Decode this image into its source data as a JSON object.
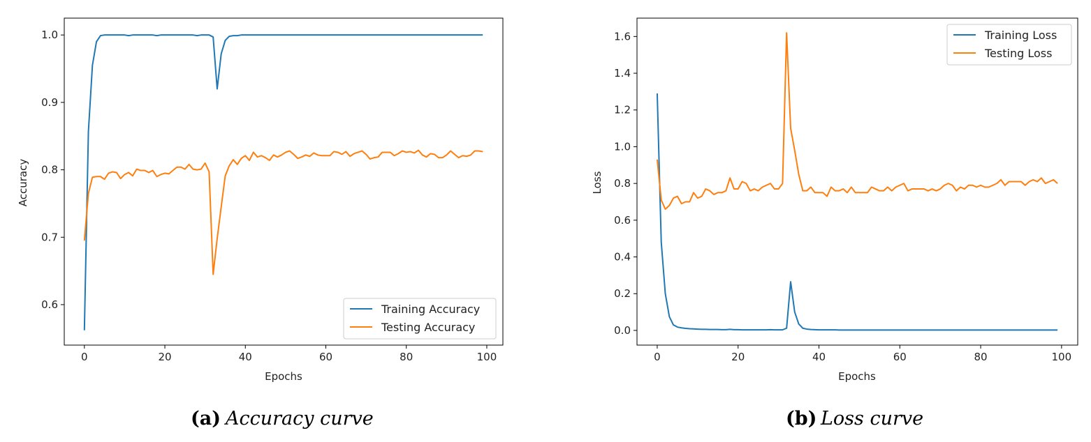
{
  "panels": [
    {
      "caption_label": "(a)",
      "caption_text": "Accuracy curve",
      "chart_data": {
        "type": "line",
        "xlabel": "Epochs",
        "ylabel": "Accuracy",
        "xlim": [
          -5,
          104
        ],
        "ylim": [
          0.54,
          1.025
        ],
        "xticks": [
          0,
          20,
          40,
          60,
          80,
          100
        ],
        "yticks": [
          0.6,
          0.7,
          0.8,
          0.9,
          1.0
        ],
        "ytick_labels": [
          "0.6",
          "0.7",
          "0.8",
          "0.9",
          "1.0"
        ],
        "legend_position": "lower-right",
        "series": [
          {
            "name": "Training Accuracy",
            "color": "#1f77b4",
            "x": [
              0,
              1,
              2,
              3,
              4,
              5,
              6,
              7,
              8,
              9,
              10,
              11,
              12,
              13,
              14,
              15,
              16,
              17,
              18,
              19,
              20,
              21,
              22,
              23,
              24,
              25,
              26,
              27,
              28,
              29,
              30,
              31,
              32,
              33,
              34,
              35,
              36,
              37,
              38,
              39,
              40,
              41,
              42,
              43,
              44,
              45,
              46,
              47,
              48,
              49,
              50,
              51,
              52,
              53,
              54,
              55,
              56,
              57,
              58,
              59,
              60,
              61,
              62,
              63,
              64,
              65,
              66,
              67,
              68,
              69,
              70,
              71,
              72,
              73,
              74,
              75,
              76,
              77,
              78,
              79,
              80,
              81,
              82,
              83,
              84,
              85,
              86,
              87,
              88,
              89,
              90,
              91,
              92,
              93,
              94,
              95,
              96,
              97,
              98,
              99
            ],
            "y": [
              0.562,
              0.857,
              0.955,
              0.99,
              0.999,
              1.0,
              1.0,
              1.0,
              1.0,
              1.0,
              1.0,
              0.999,
              1.0,
              1.0,
              1.0,
              1.0,
              1.0,
              1.0,
              0.999,
              1.0,
              1.0,
              1.0,
              1.0,
              1.0,
              1.0,
              1.0,
              1.0,
              1.0,
              0.999,
              1.0,
              1.0,
              1.0,
              0.997,
              0.92,
              0.972,
              0.992,
              0.998,
              0.999,
              0.999,
              1.0,
              1.0,
              1.0,
              1.0,
              1.0,
              1.0,
              1.0,
              1.0,
              1.0,
              1.0,
              1.0,
              1.0,
              1.0,
              1.0,
              1.0,
              1.0,
              1.0,
              1.0,
              1.0,
              1.0,
              1.0,
              1.0,
              1.0,
              1.0,
              1.0,
              1.0,
              1.0,
              1.0,
              1.0,
              1.0,
              1.0,
              1.0,
              1.0,
              1.0,
              1.0,
              1.0,
              1.0,
              1.0,
              1.0,
              1.0,
              1.0,
              1.0,
              1.0,
              1.0,
              1.0,
              1.0,
              1.0,
              1.0,
              1.0,
              1.0,
              1.0,
              1.0,
              1.0,
              1.0,
              1.0,
              1.0,
              1.0,
              1.0,
              1.0,
              1.0,
              1.0
            ]
          },
          {
            "name": "Testing Accuracy",
            "color": "#ff7f0e",
            "x": [
              0,
              1,
              2,
              3,
              4,
              5,
              6,
              7,
              8,
              9,
              10,
              11,
              12,
              13,
              14,
              15,
              16,
              17,
              18,
              19,
              20,
              21,
              22,
              23,
              24,
              25,
              26,
              27,
              28,
              29,
              30,
              31,
              32,
              33,
              34,
              35,
              36,
              37,
              38,
              39,
              40,
              41,
              42,
              43,
              44,
              45,
              46,
              47,
              48,
              49,
              50,
              51,
              52,
              53,
              54,
              55,
              56,
              57,
              58,
              59,
              60,
              61,
              62,
              63,
              64,
              65,
              66,
              67,
              68,
              69,
              70,
              71,
              72,
              73,
              74,
              75,
              76,
              77,
              78,
              79,
              80,
              81,
              82,
              83,
              84,
              85,
              86,
              87,
              88,
              89,
              90,
              91,
              92,
              93,
              94,
              95,
              96,
              97,
              98,
              99
            ],
            "y": [
              0.695,
              0.765,
              0.789,
              0.79,
              0.79,
              0.786,
              0.795,
              0.797,
              0.796,
              0.787,
              0.793,
              0.796,
              0.791,
              0.801,
              0.799,
              0.799,
              0.796,
              0.799,
              0.79,
              0.793,
              0.795,
              0.794,
              0.799,
              0.804,
              0.804,
              0.801,
              0.808,
              0.801,
              0.8,
              0.801,
              0.81,
              0.797,
              0.645,
              0.698,
              0.745,
              0.791,
              0.806,
              0.815,
              0.808,
              0.817,
              0.821,
              0.814,
              0.826,
              0.819,
              0.821,
              0.818,
              0.814,
              0.822,
              0.819,
              0.822,
              0.826,
              0.828,
              0.823,
              0.817,
              0.819,
              0.822,
              0.82,
              0.825,
              0.822,
              0.821,
              0.821,
              0.821,
              0.827,
              0.826,
              0.823,
              0.827,
              0.82,
              0.824,
              0.826,
              0.828,
              0.823,
              0.816,
              0.818,
              0.819,
              0.826,
              0.826,
              0.826,
              0.821,
              0.824,
              0.828,
              0.826,
              0.827,
              0.825,
              0.829,
              0.822,
              0.819,
              0.824,
              0.823,
              0.818,
              0.818,
              0.822,
              0.828,
              0.823,
              0.818,
              0.821,
              0.82,
              0.822,
              0.828,
              0.828,
              0.827
            ]
          }
        ]
      }
    },
    {
      "caption_label": "(b)",
      "caption_text": "Loss curve",
      "chart_data": {
        "type": "line",
        "xlabel": "Epochs",
        "ylabel": "Loss",
        "xlim": [
          -5,
          104
        ],
        "ylim": [
          -0.08,
          1.7
        ],
        "xticks": [
          0,
          20,
          40,
          60,
          80,
          100
        ],
        "yticks": [
          0.0,
          0.2,
          0.4,
          0.6,
          0.8,
          1.0,
          1.2,
          1.4,
          1.6
        ],
        "ytick_labels": [
          "0.0",
          "0.2",
          "0.4",
          "0.6",
          "0.8",
          "1.0",
          "1.2",
          "1.4",
          "1.6"
        ],
        "legend_position": "upper-right",
        "series": [
          {
            "name": "Training Loss",
            "color": "#1f77b4",
            "x": [
              0,
              1,
              2,
              3,
              4,
              5,
              6,
              7,
              8,
              9,
              10,
              11,
              12,
              13,
              14,
              15,
              16,
              17,
              18,
              19,
              20,
              21,
              22,
              23,
              24,
              25,
              26,
              27,
              28,
              29,
              30,
              31,
              32,
              33,
              34,
              35,
              36,
              37,
              38,
              39,
              40,
              41,
              42,
              43,
              44,
              45,
              46,
              47,
              48,
              49,
              50,
              51,
              52,
              53,
              54,
              55,
              56,
              57,
              58,
              59,
              60,
              61,
              62,
              63,
              64,
              65,
              66,
              67,
              68,
              69,
              70,
              71,
              72,
              73,
              74,
              75,
              76,
              77,
              78,
              79,
              80,
              81,
              82,
              83,
              84,
              85,
              86,
              87,
              88,
              89,
              90,
              91,
              92,
              93,
              94,
              95,
              96,
              97,
              98,
              99
            ],
            "y": [
              1.29,
              0.48,
              0.2,
              0.075,
              0.03,
              0.018,
              0.014,
              0.011,
              0.009,
              0.008,
              0.007,
              0.006,
              0.006,
              0.005,
              0.005,
              0.005,
              0.004,
              0.004,
              0.006,
              0.004,
              0.004,
              0.003,
              0.003,
              0.003,
              0.003,
              0.003,
              0.003,
              0.003,
              0.004,
              0.003,
              0.003,
              0.003,
              0.012,
              0.265,
              0.1,
              0.035,
              0.012,
              0.007,
              0.005,
              0.004,
              0.003,
              0.003,
              0.003,
              0.003,
              0.003,
              0.002,
              0.002,
              0.002,
              0.002,
              0.002,
              0.002,
              0.002,
              0.002,
              0.002,
              0.002,
              0.002,
              0.002,
              0.002,
              0.002,
              0.002,
              0.002,
              0.002,
              0.002,
              0.002,
              0.002,
              0.002,
              0.002,
              0.002,
              0.002,
              0.002,
              0.002,
              0.002,
              0.002,
              0.002,
              0.002,
              0.002,
              0.002,
              0.002,
              0.002,
              0.002,
              0.002,
              0.002,
              0.002,
              0.002,
              0.002,
              0.002,
              0.002,
              0.002,
              0.002,
              0.002,
              0.002,
              0.002,
              0.002,
              0.002,
              0.002,
              0.002,
              0.002,
              0.002,
              0.002,
              0.002
            ]
          },
          {
            "name": "Testing Loss",
            "color": "#ff7f0e",
            "x": [
              0,
              1,
              2,
              3,
              4,
              5,
              6,
              7,
              8,
              9,
              10,
              11,
              12,
              13,
              14,
              15,
              16,
              17,
              18,
              19,
              20,
              21,
              22,
              23,
              24,
              25,
              26,
              27,
              28,
              29,
              30,
              31,
              32,
              33,
              34,
              35,
              36,
              37,
              38,
              39,
              40,
              41,
              42,
              43,
              44,
              45,
              46,
              47,
              48,
              49,
              50,
              51,
              52,
              53,
              54,
              55,
              56,
              57,
              58,
              59,
              60,
              61,
              62,
              63,
              64,
              65,
              66,
              67,
              68,
              69,
              70,
              71,
              72,
              73,
              74,
              75,
              76,
              77,
              78,
              79,
              80,
              81,
              82,
              83,
              84,
              85,
              86,
              87,
              88,
              89,
              90,
              91,
              92,
              93,
              94,
              95,
              96,
              97,
              98,
              99
            ],
            "y": [
              0.93,
              0.71,
              0.66,
              0.68,
              0.72,
              0.73,
              0.69,
              0.7,
              0.7,
              0.75,
              0.72,
              0.73,
              0.77,
              0.76,
              0.74,
              0.75,
              0.75,
              0.76,
              0.83,
              0.77,
              0.77,
              0.81,
              0.8,
              0.76,
              0.77,
              0.76,
              0.78,
              0.79,
              0.8,
              0.77,
              0.77,
              0.8,
              1.62,
              1.1,
              0.98,
              0.85,
              0.76,
              0.76,
              0.78,
              0.75,
              0.75,
              0.75,
              0.73,
              0.78,
              0.76,
              0.76,
              0.77,
              0.75,
              0.78,
              0.75,
              0.75,
              0.75,
              0.75,
              0.78,
              0.77,
              0.76,
              0.76,
              0.78,
              0.76,
              0.78,
              0.79,
              0.8,
              0.76,
              0.77,
              0.77,
              0.77,
              0.77,
              0.76,
              0.77,
              0.76,
              0.77,
              0.79,
              0.8,
              0.79,
              0.76,
              0.78,
              0.77,
              0.79,
              0.79,
              0.78,
              0.79,
              0.78,
              0.78,
              0.79,
              0.8,
              0.82,
              0.79,
              0.81,
              0.81,
              0.81,
              0.81,
              0.79,
              0.81,
              0.82,
              0.81,
              0.83,
              0.8,
              0.81,
              0.82,
              0.8
            ]
          }
        ]
      }
    }
  ]
}
